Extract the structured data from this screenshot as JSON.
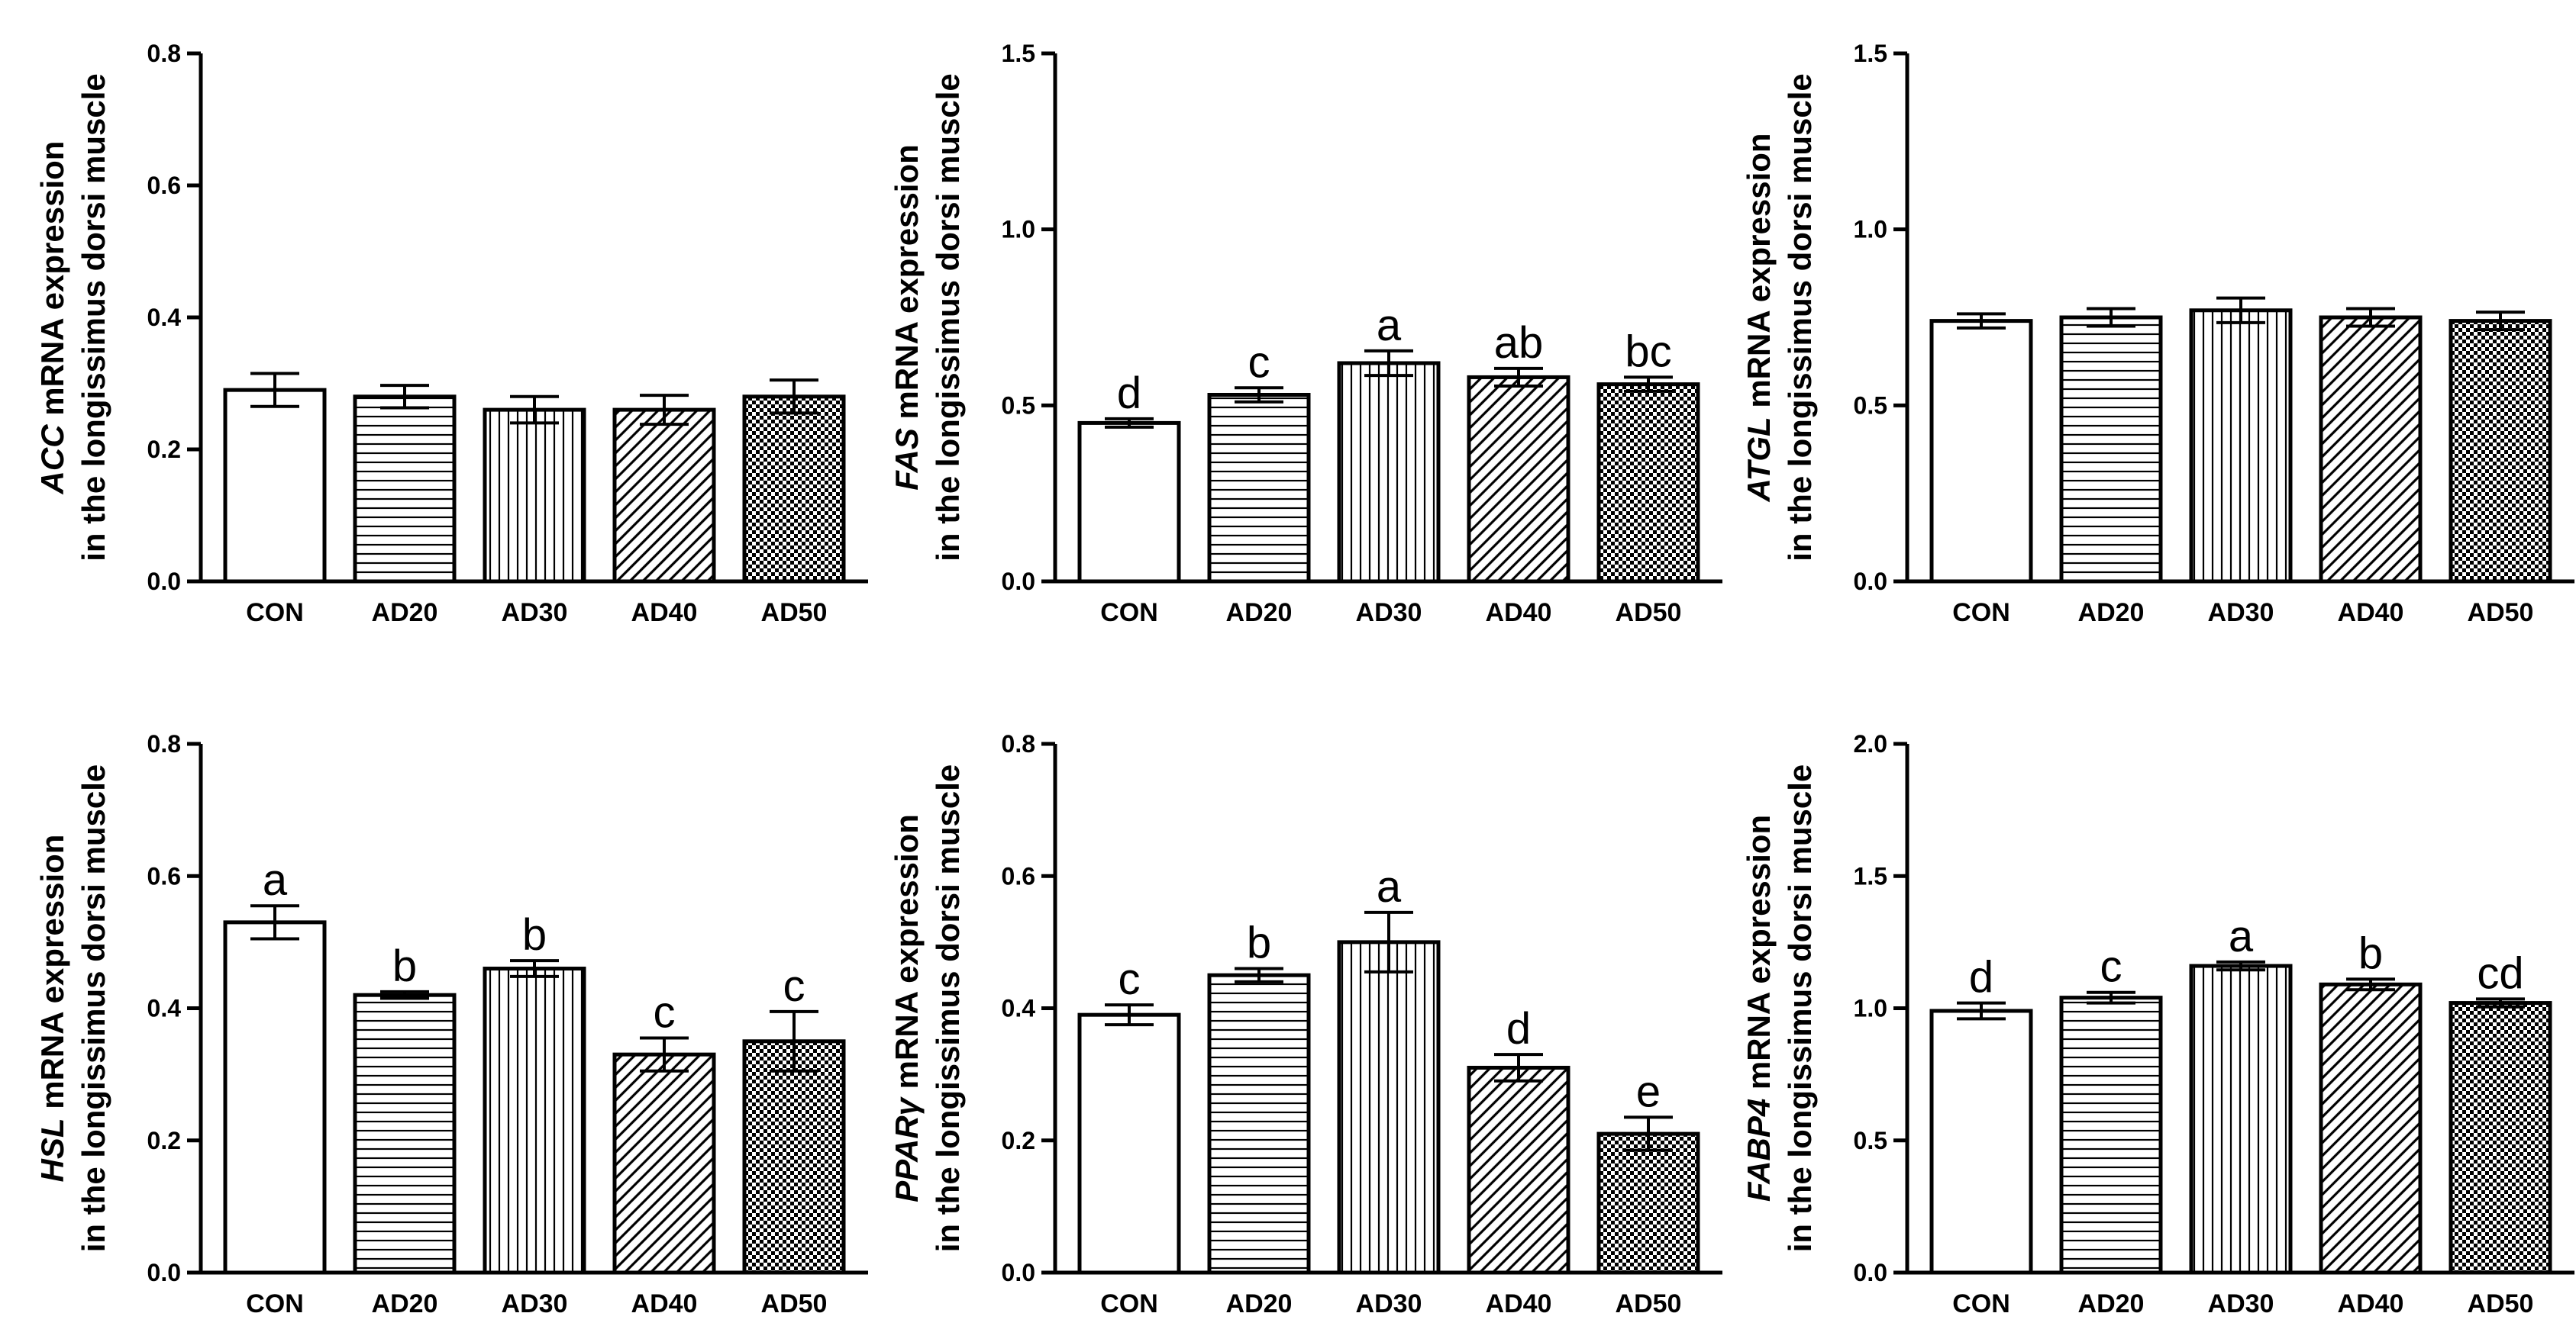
{
  "chart_data": [
    {
      "type": "bar",
      "categories": [
        "CON",
        "AD20",
        "AD30",
        "AD40",
        "AD50"
      ],
      "values": [
        0.29,
        0.28,
        0.26,
        0.26,
        0.28
      ],
      "errors": [
        0.025,
        0.017,
        0.02,
        0.022,
        0.025
      ],
      "significance": [
        "",
        "",
        "",
        "",
        ""
      ],
      "ylabel_gene": "ACC",
      "ylabel_line1_rest": " mRNA expression",
      "ylabel_line2": "in the longissimus dorsi muscle",
      "ylim": [
        0,
        0.8
      ],
      "yticks": [
        "0.0",
        "0.2",
        "0.4",
        "0.6",
        "0.8"
      ]
    },
    {
      "type": "bar",
      "categories": [
        "CON",
        "AD20",
        "AD30",
        "AD40",
        "AD50"
      ],
      "values": [
        0.45,
        0.53,
        0.62,
        0.58,
        0.56
      ],
      "errors": [
        0.012,
        0.02,
        0.035,
        0.025,
        0.02
      ],
      "significance": [
        "d",
        "c",
        "a",
        "ab",
        "bc"
      ],
      "ylabel_gene": "FAS",
      "ylabel_line1_rest": " mRNA expression",
      "ylabel_line2": "in the longissimus dorsi muscle",
      "ylim": [
        0,
        1.5
      ],
      "yticks": [
        "0.0",
        "0.5",
        "1.0",
        "1.5"
      ]
    },
    {
      "type": "bar",
      "categories": [
        "CON",
        "AD20",
        "AD30",
        "AD40",
        "AD50"
      ],
      "values": [
        0.74,
        0.75,
        0.77,
        0.75,
        0.74
      ],
      "errors": [
        0.02,
        0.025,
        0.035,
        0.025,
        0.025
      ],
      "significance": [
        "",
        "",
        "",
        "",
        ""
      ],
      "ylabel_gene": "ATGL",
      "ylabel_line1_rest": " mRNA expression",
      "ylabel_line2": "in the longissimus dorsi muscle",
      "ylim": [
        0,
        1.5
      ],
      "yticks": [
        "0.0",
        "0.5",
        "1.0",
        "1.5"
      ]
    },
    {
      "type": "bar",
      "categories": [
        "CON",
        "AD20",
        "AD30",
        "AD40",
        "AD50"
      ],
      "values": [
        0.53,
        0.42,
        0.46,
        0.33,
        0.35
      ],
      "errors": [
        0.025,
        0.005,
        0.012,
        0.025,
        0.045
      ],
      "significance": [
        "a",
        "b",
        "b",
        "c",
        "c"
      ],
      "ylabel_gene": "HSL",
      "ylabel_line1_rest": " mRNA expression",
      "ylabel_line2": "in the longissimus dorsi muscle",
      "ylim": [
        0,
        0.8
      ],
      "yticks": [
        "0.0",
        "0.2",
        "0.4",
        "0.6",
        "0.8"
      ]
    },
    {
      "type": "bar",
      "categories": [
        "CON",
        "AD20",
        "AD30",
        "AD40",
        "AD50"
      ],
      "values": [
        0.39,
        0.45,
        0.5,
        0.31,
        0.21
      ],
      "errors": [
        0.015,
        0.01,
        0.045,
        0.02,
        0.025
      ],
      "significance": [
        "c",
        "b",
        "a",
        "d",
        "e"
      ],
      "ylabel_gene": "PPARγ",
      "ylabel_line1_rest": " mRNA expression",
      "ylabel_line2": "in the longissimus dorsi muscle",
      "ylim": [
        0,
        0.8
      ],
      "yticks": [
        "0.0",
        "0.2",
        "0.4",
        "0.6",
        "0.8"
      ]
    },
    {
      "type": "bar",
      "categories": [
        "CON",
        "AD20",
        "AD30",
        "AD40",
        "AD50"
      ],
      "values": [
        0.99,
        1.04,
        1.16,
        1.09,
        1.02
      ],
      "errors": [
        0.03,
        0.02,
        0.015,
        0.02,
        0.015
      ],
      "significance": [
        "d",
        "c",
        "a",
        "b",
        "cd"
      ],
      "ylabel_gene": "FABP4",
      "ylabel_line1_rest": " mRNA expression",
      "ylabel_line2": "in the longissimus dorsi muscle",
      "ylim": [
        0,
        2.0
      ],
      "yticks": [
        "0.0",
        "0.5",
        "1.0",
        "1.5",
        "2.0"
      ]
    }
  ]
}
